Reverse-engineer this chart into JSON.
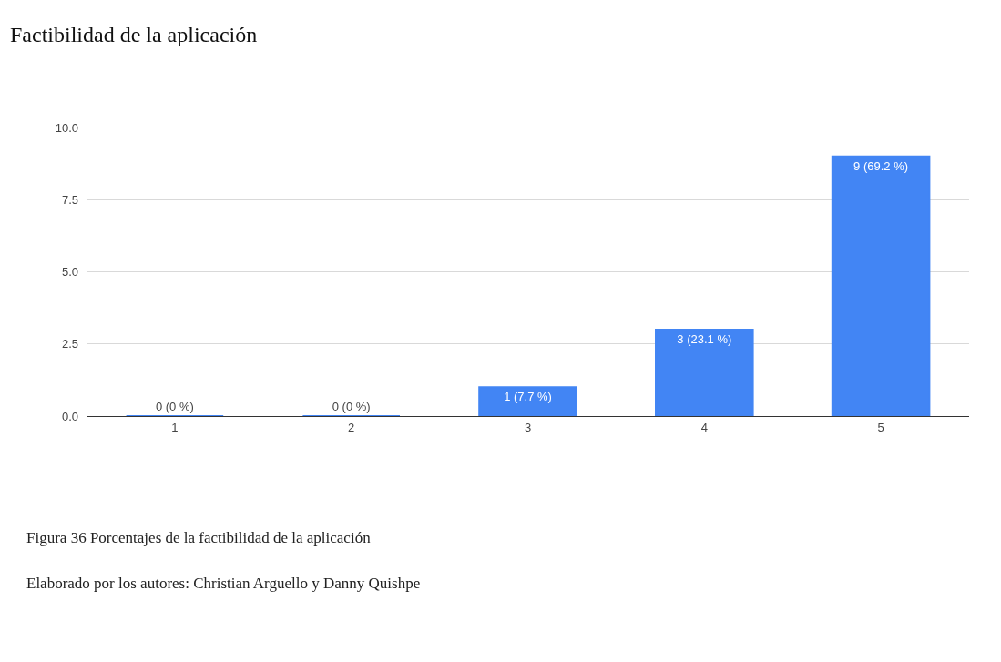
{
  "chart_data": {
    "type": "bar",
    "title": "Factibilidad de la aplicación",
    "categories": [
      "1",
      "2",
      "3",
      "4",
      "5"
    ],
    "series": [
      {
        "color": "#4285f4",
        "values": [
          0,
          0,
          1,
          3,
          9
        ]
      }
    ],
    "value_labels": [
      "0 (0 %)",
      "0 (0 %)",
      "1 (7.7 %)",
      "3 (23.1 %)",
      "9 (69.2 %)"
    ],
    "ylim": [
      0,
      10
    ],
    "yticks": [
      {
        "value": 0,
        "label": "0.0"
      },
      {
        "value": 2.5,
        "label": "2.5"
      },
      {
        "value": 5,
        "label": "5.0"
      },
      {
        "value": 7.5,
        "label": "7.5"
      },
      {
        "value": 10,
        "label": "10.0"
      }
    ],
    "grid": "y",
    "annotations": [
      "Figura 36 Porcentajes de la factibilidad de la aplicación",
      "Elaborado por los autores: Christian Arguello y Danny Quishpe"
    ]
  }
}
